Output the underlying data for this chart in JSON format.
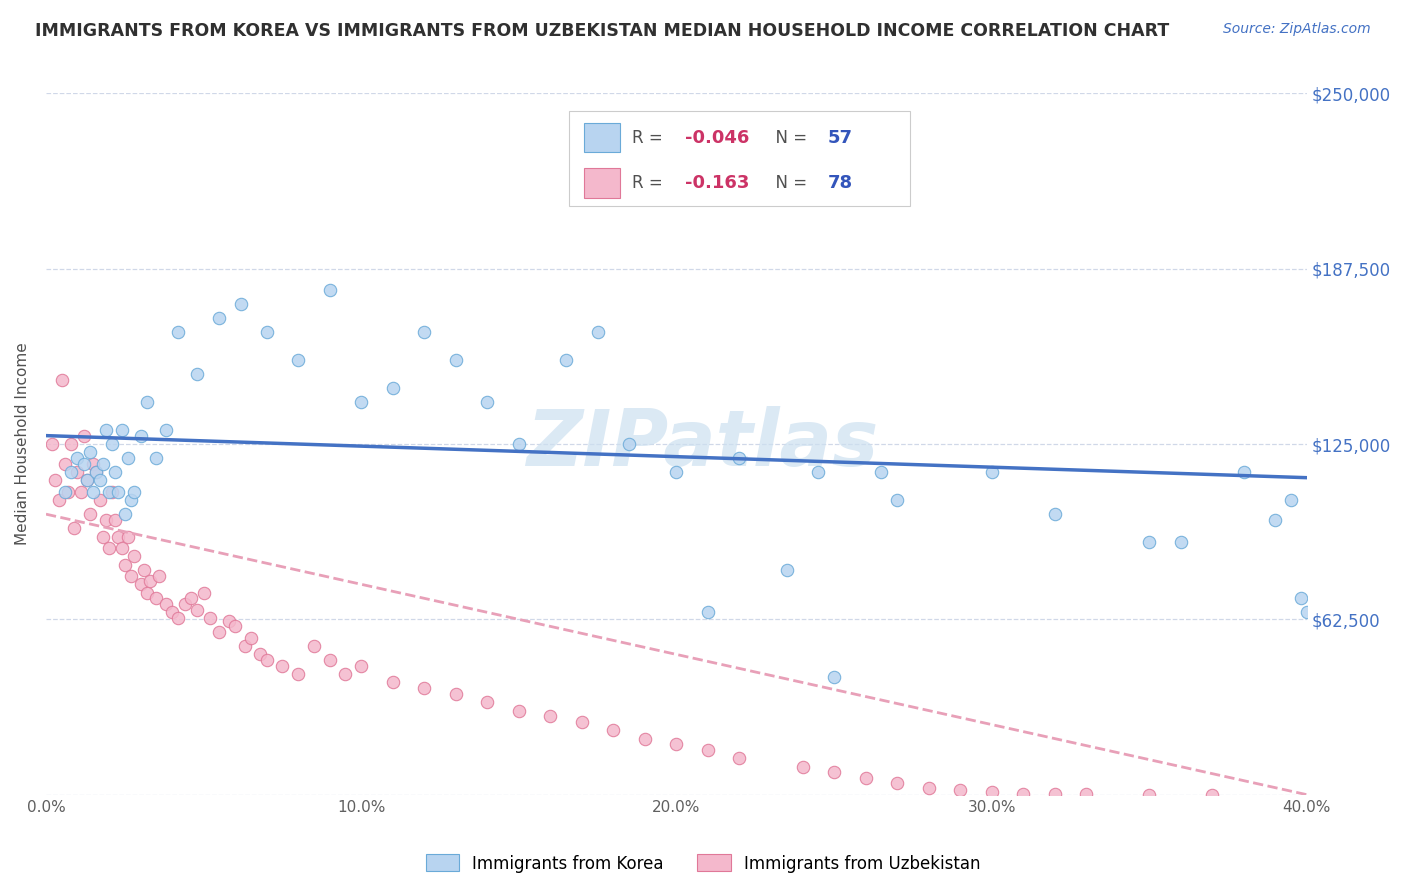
{
  "title": "IMMIGRANTS FROM KOREA VS IMMIGRANTS FROM UZBEKISTAN MEDIAN HOUSEHOLD INCOME CORRELATION CHART",
  "source": "Source: ZipAtlas.com",
  "ylabel": "Median Household Income",
  "xlim": [
    0.0,
    0.4
  ],
  "ylim": [
    0,
    250000
  ],
  "yticks": [
    0,
    62500,
    125000,
    187500,
    250000
  ],
  "ytick_labels_right": [
    "",
    "$62,500",
    "$125,000",
    "$187,500",
    "$250,000"
  ],
  "xticks": [
    0.0,
    0.1,
    0.2,
    0.3,
    0.4
  ],
  "xtick_labels": [
    "0.0%",
    "10.0%",
    "20.0%",
    "30.0%",
    "40.0%"
  ],
  "korea_R": -0.046,
  "korea_N": 57,
  "uzbekistan_R": -0.163,
  "uzbekistan_N": 78,
  "korea_color": "#b8d4f0",
  "korea_edge_color": "#6aaad8",
  "uzbekistan_color": "#f4b8cc",
  "uzbekistan_edge_color": "#e07898",
  "korea_line_color": "#4472c4",
  "uzbekistan_line_color": "#e8a0b8",
  "background_color": "#ffffff",
  "grid_color": "#d0d8e8",
  "watermark": "ZIPatlas",
  "watermark_color": "#cce0f0",
  "title_color": "#303030",
  "ylabel_color": "#505050",
  "right_tick_color": "#4472c4",
  "bottom_tick_color": "#606060",
  "legend_r_color": "#cc3366",
  "legend_n_color": "#3355bb",
  "source_color": "#4472c4",
  "korea_x": [
    0.006,
    0.008,
    0.01,
    0.012,
    0.013,
    0.014,
    0.015,
    0.016,
    0.017,
    0.018,
    0.019,
    0.02,
    0.021,
    0.022,
    0.023,
    0.024,
    0.025,
    0.026,
    0.027,
    0.028,
    0.03,
    0.032,
    0.035,
    0.038,
    0.042,
    0.048,
    0.055,
    0.062,
    0.07,
    0.08,
    0.09,
    0.1,
    0.11,
    0.12,
    0.13,
    0.14,
    0.15,
    0.165,
    0.175,
    0.185,
    0.2,
    0.21,
    0.22,
    0.235,
    0.245,
    0.25,
    0.265,
    0.27,
    0.3,
    0.32,
    0.35,
    0.36,
    0.38,
    0.39,
    0.395,
    0.398,
    0.4
  ],
  "korea_y": [
    108000,
    115000,
    120000,
    118000,
    112000,
    122000,
    108000,
    115000,
    112000,
    118000,
    130000,
    108000,
    125000,
    115000,
    108000,
    130000,
    100000,
    120000,
    105000,
    108000,
    128000,
    140000,
    120000,
    130000,
    165000,
    150000,
    170000,
    175000,
    165000,
    155000,
    180000,
    140000,
    145000,
    165000,
    155000,
    140000,
    125000,
    155000,
    165000,
    125000,
    115000,
    65000,
    120000,
    80000,
    115000,
    42000,
    115000,
    105000,
    115000,
    100000,
    90000,
    90000,
    115000,
    98000,
    105000,
    70000,
    65000
  ],
  "uzbekistan_x": [
    0.002,
    0.003,
    0.004,
    0.005,
    0.006,
    0.007,
    0.008,
    0.009,
    0.01,
    0.011,
    0.012,
    0.013,
    0.014,
    0.015,
    0.016,
    0.017,
    0.018,
    0.019,
    0.02,
    0.021,
    0.022,
    0.023,
    0.024,
    0.025,
    0.026,
    0.027,
    0.028,
    0.03,
    0.031,
    0.032,
    0.033,
    0.035,
    0.036,
    0.038,
    0.04,
    0.042,
    0.044,
    0.046,
    0.048,
    0.05,
    0.052,
    0.055,
    0.058,
    0.06,
    0.063,
    0.065,
    0.068,
    0.07,
    0.075,
    0.08,
    0.085,
    0.09,
    0.095,
    0.1,
    0.11,
    0.12,
    0.13,
    0.14,
    0.15,
    0.16,
    0.17,
    0.18,
    0.19,
    0.2,
    0.21,
    0.22,
    0.24,
    0.25,
    0.26,
    0.27,
    0.28,
    0.29,
    0.3,
    0.31,
    0.32,
    0.33,
    0.35,
    0.37
  ],
  "uzbekistan_y": [
    125000,
    112000,
    105000,
    148000,
    118000,
    108000,
    125000,
    95000,
    115000,
    108000,
    128000,
    112000,
    100000,
    118000,
    115000,
    105000,
    92000,
    98000,
    88000,
    108000,
    98000,
    92000,
    88000,
    82000,
    92000,
    78000,
    85000,
    75000,
    80000,
    72000,
    76000,
    70000,
    78000,
    68000,
    65000,
    63000,
    68000,
    70000,
    66000,
    72000,
    63000,
    58000,
    62000,
    60000,
    53000,
    56000,
    50000,
    48000,
    46000,
    43000,
    53000,
    48000,
    43000,
    46000,
    40000,
    38000,
    36000,
    33000,
    30000,
    28000,
    26000,
    23000,
    20000,
    18000,
    16000,
    13000,
    10000,
    8000,
    6000,
    4000,
    2500,
    1500,
    800,
    400,
    200,
    100,
    50,
    30
  ],
  "korea_trend_x0": 0.0,
  "korea_trend_x1": 0.4,
  "korea_trend_y0": 128000,
  "korea_trend_y1": 113000,
  "uzbekistan_trend_x0": 0.0,
  "uzbekistan_trend_x1": 0.4,
  "uzbekistan_trend_y0": 100000,
  "uzbekistan_trend_y1": 0
}
